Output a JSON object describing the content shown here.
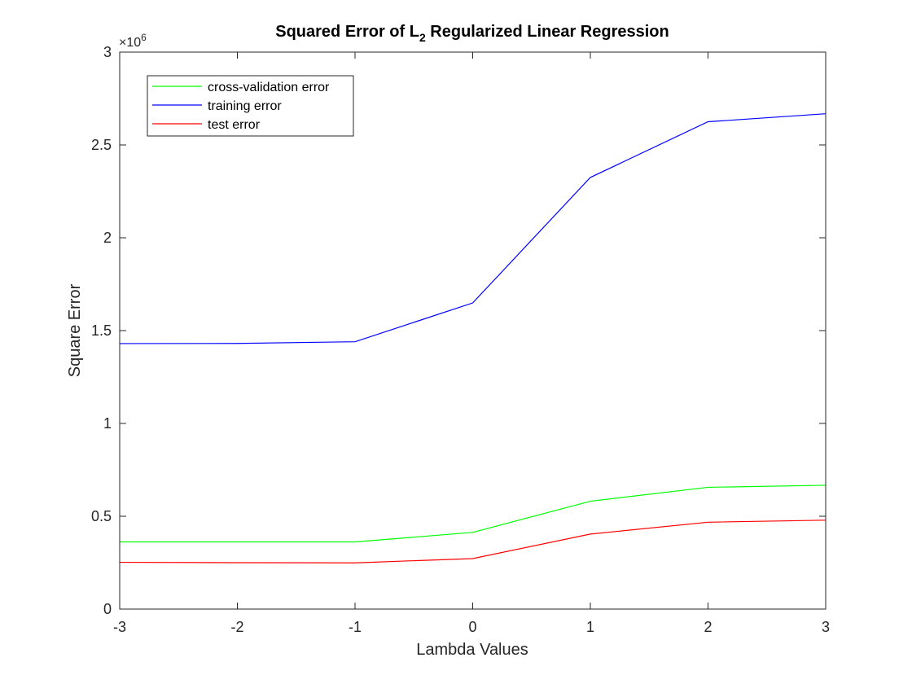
{
  "chart_data": {
    "type": "line",
    "title_parts": {
      "before": "Squared Error of L",
      "subscript": "2",
      "after": " Regularized Linear Regression"
    },
    "xlabel": "Lambda Values",
    "ylabel": "Square Error",
    "y_exponent": {
      "base": "×10",
      "power": "6"
    },
    "xlim": [
      -3,
      3
    ],
    "ylim": [
      0,
      3
    ],
    "xticks": [
      -3,
      -2,
      -1,
      0,
      1,
      2,
      3
    ],
    "xtick_labels": [
      "-3",
      "-2",
      "-1",
      "0",
      "1",
      "2",
      "3"
    ],
    "yticks": [
      0,
      0.5,
      1,
      1.5,
      2,
      2.5,
      3
    ],
    "ytick_labels": [
      "0",
      "0.5",
      "1",
      "1.5",
      "2",
      "2.5",
      "3"
    ],
    "x": [
      -3,
      -2,
      -1,
      0,
      1,
      2,
      3
    ],
    "grid": false,
    "legend_position": "top-left",
    "series": [
      {
        "name": "cross-validation error",
        "color": "#00ff00",
        "values": [
          0.362,
          0.362,
          0.362,
          0.413,
          0.581,
          0.656,
          0.667
        ]
      },
      {
        "name": "training error",
        "color": "#0000ff",
        "values": [
          1.43,
          1.431,
          1.44,
          1.649,
          2.325,
          2.625,
          2.668
        ]
      },
      {
        "name": "test error",
        "color": "#ff0000",
        "values": [
          0.252,
          0.25,
          0.249,
          0.272,
          0.404,
          0.468,
          0.479
        ]
      }
    ]
  }
}
